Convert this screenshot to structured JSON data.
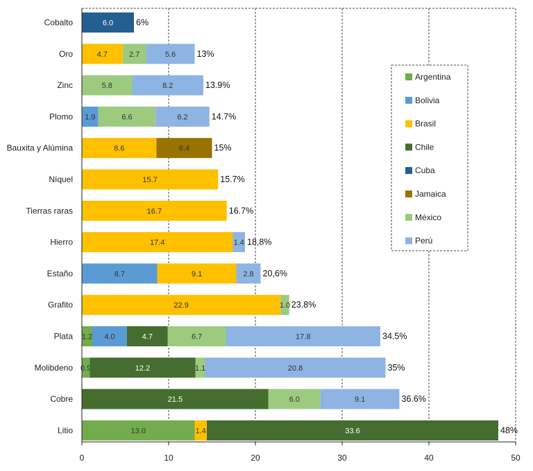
{
  "chart_data": {
    "type": "bar",
    "orientation": "horizontal",
    "stacked": true,
    "xlim": [
      0,
      50
    ],
    "xticks": [
      "0",
      "10",
      "20",
      "30",
      "40",
      "50"
    ],
    "grid": true,
    "legend_position": "right",
    "series_info": [
      {
        "name": "Argentina",
        "color": "#72ac4d"
      },
      {
        "name": "Bolivia",
        "color": "#5b9bd5"
      },
      {
        "name": "Brasil",
        "color": "#ffc000"
      },
      {
        "name": "Chile",
        "color": "#446d2f"
      },
      {
        "name": "Cuba",
        "color": "#255e91"
      },
      {
        "name": "Jamaica",
        "color": "#997300"
      },
      {
        "name": "México",
        "color": "#9ccb7f"
      },
      {
        "name": "Perú",
        "color": "#8eb4e3"
      }
    ],
    "rows": [
      {
        "category": "Cobalto",
        "total_label": "6%",
        "segments": [
          {
            "series": "Cuba",
            "value": 6.0,
            "label": "6.0"
          }
        ]
      },
      {
        "category": "Oro",
        "total_label": "13%",
        "segments": [
          {
            "series": "Brasil",
            "value": 4.7,
            "label": "4.7"
          },
          {
            "series": "México",
            "value": 2.7,
            "label": "2.7"
          },
          {
            "series": "Perú",
            "value": 5.6,
            "label": "5.6"
          }
        ]
      },
      {
        "category": "Zinc",
        "total_label": "13.9%",
        "segments": [
          {
            "series": "México",
            "value": 5.8,
            "label": "5.8"
          },
          {
            "series": "Perú",
            "value": 8.2,
            "label": "8.2"
          }
        ]
      },
      {
        "category": "Plomo",
        "total_label": "14.7%",
        "segments": [
          {
            "series": "Bolivia",
            "value": 1.9,
            "label": "1.9"
          },
          {
            "series": "México",
            "value": 6.6,
            "label": "6.6"
          },
          {
            "series": "Perú",
            "value": 6.2,
            "label": "6.2"
          }
        ]
      },
      {
        "category": "Bauxita y Alúmina",
        "total_label": "15%",
        "segments": [
          {
            "series": "Brasil",
            "value": 8.6,
            "label": "8.6"
          },
          {
            "series": "Jamaica",
            "value": 6.4,
            "label": "6.4"
          }
        ]
      },
      {
        "category": "Níquel",
        "total_label": "15.7%",
        "segments": [
          {
            "series": "Brasil",
            "value": 15.7,
            "label": "15.7"
          }
        ]
      },
      {
        "category": "Tierras raras",
        "total_label": "16.7%",
        "segments": [
          {
            "series": "Brasil",
            "value": 16.7,
            "label": "16.7"
          }
        ]
      },
      {
        "category": "Hierro",
        "total_label": "18,8%",
        "segments": [
          {
            "series": "Brasil",
            "value": 17.4,
            "label": "17.4"
          },
          {
            "series": "Perú",
            "value": 1.4,
            "label": "1.4"
          }
        ]
      },
      {
        "category": "Estaño",
        "total_label": "20,6%",
        "segments": [
          {
            "series": "Bolivia",
            "value": 8.7,
            "label": "8.7"
          },
          {
            "series": "Brasil",
            "value": 9.1,
            "label": "9.1"
          },
          {
            "series": "Perú",
            "value": 2.8,
            "label": "2.8"
          }
        ]
      },
      {
        "category": "Grafito",
        "total_label": "23.8%",
        "segments": [
          {
            "series": "Brasil",
            "value": 22.9,
            "label": "22.9"
          },
          {
            "series": "México",
            "value": 1.0,
            "label": "1.0"
          }
        ]
      },
      {
        "category": "Plata",
        "total_label": "34.5%",
        "segments": [
          {
            "series": "Argentina",
            "value": 1.2,
            "label": "1.2"
          },
          {
            "series": "Bolivia",
            "value": 4.0,
            "label": "4.0"
          },
          {
            "series": "Chile",
            "value": 4.7,
            "label": "4.7"
          },
          {
            "series": "México",
            "value": 6.7,
            "label": "6.7"
          },
          {
            "series": "Perú",
            "value": 17.8,
            "label": "17.8"
          }
        ]
      },
      {
        "category": "Molibdeno",
        "total_label": "35%",
        "segments": [
          {
            "series": "Argentina",
            "value": 0.9,
            "label": "0.9"
          },
          {
            "series": "Chile",
            "value": 12.2,
            "label": "12.2"
          },
          {
            "series": "México",
            "value": 1.1,
            "label": "1.1"
          },
          {
            "series": "Perú",
            "value": 20.8,
            "label": "20.8"
          }
        ]
      },
      {
        "category": "Cobre",
        "total_label": "36.6%",
        "segments": [
          {
            "series": "Chile",
            "value": 21.5,
            "label": "21.5"
          },
          {
            "series": "México",
            "value": 6.0,
            "label": "6.0"
          },
          {
            "series": "Perú",
            "value": 9.1,
            "label": "9.1"
          }
        ]
      },
      {
        "category": "Litio",
        "total_label": "48%",
        "segments": [
          {
            "series": "Argentina",
            "value": 13.0,
            "label": "13.0"
          },
          {
            "series": "Brasil",
            "value": 1.4,
            "label": "1.4"
          },
          {
            "series": "Chile",
            "value": 33.6,
            "label": "33.6"
          }
        ]
      }
    ]
  }
}
